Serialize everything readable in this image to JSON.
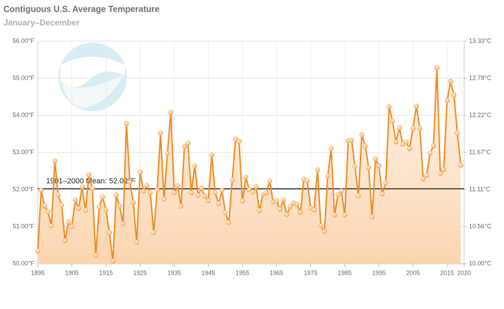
{
  "chart_data": {
    "type": "line",
    "title": "Contiguous U.S. Average Temperature",
    "subtitle": "January–December",
    "x": [
      1895,
      1896,
      1897,
      1898,
      1899,
      1900,
      1901,
      1902,
      1903,
      1904,
      1905,
      1906,
      1907,
      1908,
      1909,
      1910,
      1911,
      1912,
      1913,
      1914,
      1915,
      1916,
      1917,
      1918,
      1919,
      1920,
      1921,
      1922,
      1923,
      1924,
      1925,
      1926,
      1927,
      1928,
      1929,
      1930,
      1931,
      1932,
      1933,
      1934,
      1935,
      1936,
      1937,
      1938,
      1939,
      1940,
      1941,
      1942,
      1943,
      1944,
      1945,
      1946,
      1947,
      1948,
      1949,
      1950,
      1951,
      1952,
      1953,
      1954,
      1955,
      1956,
      1957,
      1958,
      1959,
      1960,
      1961,
      1962,
      1963,
      1964,
      1965,
      1966,
      1967,
      1968,
      1969,
      1970,
      1971,
      1972,
      1973,
      1974,
      1975,
      1976,
      1977,
      1978,
      1979,
      1980,
      1981,
      1982,
      1983,
      1984,
      1985,
      1986,
      1987,
      1988,
      1989,
      1990,
      1991,
      1992,
      1993,
      1994,
      1995,
      1996,
      1997,
      1998,
      1999,
      2000,
      2001,
      2002,
      2003,
      2004,
      2005,
      2006,
      2007,
      2008,
      2009,
      2010,
      2011,
      2012,
      2013,
      2014,
      2015,
      2016,
      2017,
      2018,
      2019
    ],
    "values": [
      50.34,
      51.98,
      51.56,
      51.4,
      51.02,
      52.77,
      51.85,
      51.58,
      50.62,
      51.13,
      51.0,
      51.72,
      51.49,
      52.07,
      51.44,
      52.4,
      52.02,
      50.23,
      51.53,
      51.8,
      51.45,
      50.84,
      50.07,
      51.85,
      51.55,
      51.08,
      53.78,
      52.2,
      51.65,
      50.58,
      52.47,
      51.95,
      52.11,
      51.91,
      50.84,
      51.99,
      53.52,
      51.74,
      52.97,
      54.08,
      51.91,
      52.1,
      51.55,
      53.16,
      53.25,
      51.91,
      52.64,
      51.84,
      52.04,
      51.82,
      51.7,
      52.93,
      51.92,
      51.62,
      51.98,
      51.37,
      51.11,
      52.25,
      53.36,
      53.3,
      51.69,
      52.33,
      52.0,
      51.93,
      52.08,
      51.43,
      51.87,
      51.91,
      52.23,
      51.66,
      51.7,
      51.47,
      51.72,
      51.32,
      51.54,
      51.64,
      51.6,
      51.38,
      52.28,
      52.23,
      51.5,
      51.45,
      52.53,
      51.02,
      50.86,
      52.36,
      53.11,
      51.31,
      51.86,
      51.96,
      51.31,
      53.31,
      53.33,
      52.62,
      51.83,
      53.48,
      53.17,
      52.59,
      51.26,
      52.83,
      52.64,
      51.88,
      52.18,
      54.23,
      53.85,
      53.28,
      53.67,
      53.22,
      53.28,
      53.1,
      53.65,
      54.25,
      53.65,
      52.28,
      52.38,
      52.98,
      53.18,
      55.28,
      52.43,
      52.54,
      54.4,
      54.92,
      54.55,
      53.52,
      52.66
    ],
    "color": "#ef8a1d",
    "xlim": [
      1895,
      2020
    ],
    "xticks": [
      1895,
      1905,
      1915,
      1925,
      1935,
      1945,
      1955,
      1965,
      1975,
      1985,
      1995,
      2005,
      2015,
      2020
    ],
    "ylim": [
      50,
      56
    ],
    "yticks": [
      {
        "value": 50,
        "label": "50.00°F"
      },
      {
        "value": 51,
        "label": "51.00°F"
      },
      {
        "value": 52,
        "label": "52.00°F"
      },
      {
        "value": 53,
        "label": "53.00°F"
      },
      {
        "value": 54,
        "label": "54.00°F"
      },
      {
        "value": 55,
        "label": "55.00°F"
      },
      {
        "value": 56,
        "label": "56.00°F"
      }
    ],
    "y2lim": [
      10,
      13.333
    ],
    "y2ticks": [
      {
        "value": 10,
        "label": "10.00°C"
      },
      {
        "value": 10.556,
        "label": "10.56°C"
      },
      {
        "value": 11.111,
        "label": "11.11°C"
      },
      {
        "value": 11.667,
        "label": "11.67°C"
      },
      {
        "value": 12.222,
        "label": "12.22°C"
      },
      {
        "value": 12.778,
        "label": "12.78°C"
      },
      {
        "value": 13.333,
        "label": "13.33°C"
      }
    ],
    "grid": true,
    "annotations": [
      {
        "text": "1901–2000 Mean: 52.02°F",
        "value": 52.02
      }
    ]
  }
}
